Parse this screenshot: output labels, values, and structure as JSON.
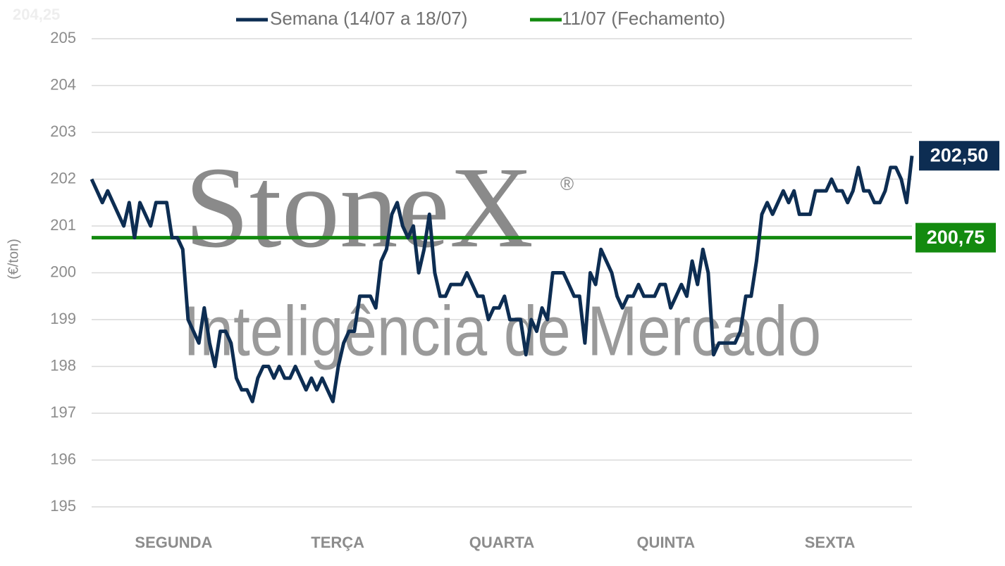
{
  "chart_data": {
    "type": "line",
    "ghost_label": "204,25",
    "watermark": {
      "brand": "StoneX",
      "mark": "®",
      "tagline": "Inteligência de Mercado"
    },
    "y_axis_label": "(€/ton)",
    "day_labels": [
      "SEGUNDA",
      "TERÇA",
      "QUARTA",
      "QUINTA",
      "SEXTA"
    ],
    "ylim": [
      195,
      205
    ],
    "yticks": [
      195,
      196,
      197,
      198,
      199,
      200,
      201,
      202,
      203,
      204,
      205
    ],
    "grid": true,
    "legend": "top",
    "series": [
      {
        "name": "Semana (14/07 a 18/07)",
        "color": "#0d2d52",
        "last_value_label": "202,50",
        "values": [
          202.0,
          201.75,
          201.5,
          201.75,
          201.5,
          201.25,
          201.0,
          201.5,
          200.75,
          201.5,
          201.25,
          201.0,
          201.5,
          201.5,
          201.5,
          200.75,
          200.75,
          200.5,
          199.0,
          198.75,
          198.5,
          199.25,
          198.5,
          198.0,
          198.75,
          198.75,
          198.5,
          197.75,
          197.5,
          197.5,
          197.25,
          197.75,
          198.0,
          198.0,
          197.75,
          198.0,
          197.75,
          197.75,
          198.0,
          197.75,
          197.5,
          197.75,
          197.5,
          197.75,
          197.5,
          197.25,
          198.0,
          198.5,
          198.75,
          198.75,
          199.5,
          199.5,
          199.5,
          199.25,
          200.25,
          200.5,
          201.25,
          201.5,
          201.0,
          200.75,
          201.0,
          200.0,
          200.5,
          201.25,
          200.0,
          199.5,
          199.5,
          199.75,
          199.75,
          199.75,
          200.0,
          199.75,
          199.5,
          199.5,
          199.0,
          199.25,
          199.25,
          199.5,
          199.0,
          199.0,
          199.0,
          198.25,
          199.0,
          198.75,
          199.25,
          199.0,
          200.0,
          200.0,
          200.0,
          199.75,
          199.5,
          199.5,
          198.5,
          200.0,
          199.75,
          200.5,
          200.25,
          200.0,
          199.5,
          199.25,
          199.5,
          199.5,
          199.75,
          199.5,
          199.5,
          199.5,
          199.75,
          199.75,
          199.25,
          199.5,
          199.75,
          199.5,
          200.25,
          199.75,
          200.5,
          200.0,
          198.25,
          198.5,
          198.5,
          198.5,
          198.5,
          198.75,
          199.5,
          199.5,
          200.25,
          201.25,
          201.5,
          201.25,
          201.5,
          201.75,
          201.5,
          201.75,
          201.25,
          201.25,
          201.25,
          201.75,
          201.75,
          201.75,
          202.0,
          201.75,
          201.75,
          201.5,
          201.75,
          202.25,
          201.75,
          201.75,
          201.5,
          201.5,
          201.75,
          202.25,
          202.25,
          202.0,
          201.5,
          202.5
        ]
      },
      {
        "name": "11/07 (Fechamento)",
        "color": "#138a0f",
        "values": [
          200.75
        ],
        "value_label": "200,75"
      }
    ]
  }
}
